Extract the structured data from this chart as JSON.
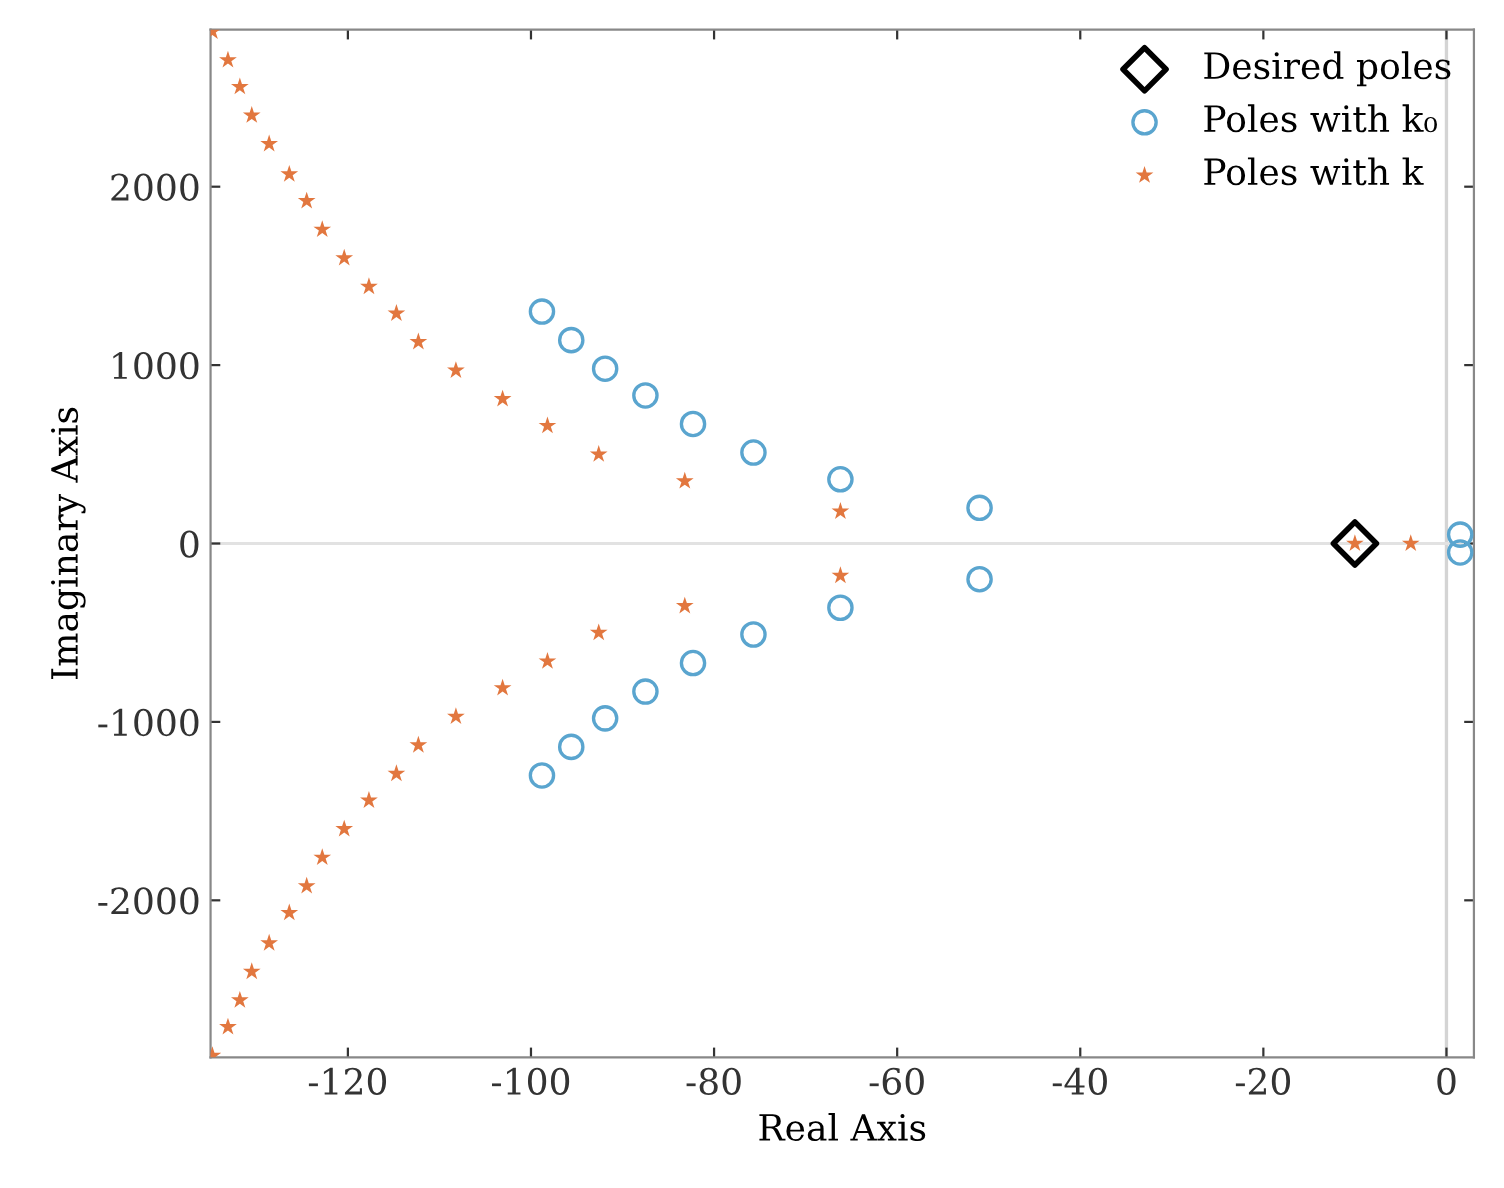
{
  "chart_data": {
    "type": "scatter",
    "xlabel": "Real Axis",
    "ylabel": "Imaginary Axis",
    "xlim": [
      -135,
      3
    ],
    "ylim": [
      -2880,
      2880
    ],
    "xticks": [
      -120,
      -100,
      -80,
      -60,
      -40,
      -20,
      0
    ],
    "yticks": [
      -2000,
      -1000,
      0,
      1000,
      2000
    ],
    "grid": false,
    "legend": "top right",
    "ref_lines": [
      {
        "axis": "x",
        "value": 0,
        "color": "#d4d4d4"
      },
      {
        "axis": "y",
        "value": 0,
        "color": "#e2e2e2"
      }
    ],
    "series": [
      {
        "name": "Desired poles",
        "color": "#000000",
        "marker": "diamond",
        "x": [
          -10
        ],
        "values": [
          0
        ]
      },
      {
        "name": "Poles with k₀",
        "color": "#5aa5cf",
        "marker": "circle",
        "x": [
          -98.8,
          -95.6,
          -91.9,
          -87.5,
          -82.3,
          -75.7,
          -66.2,
          -51.0,
          1.5,
          -98.8,
          -95.6,
          -91.9,
          -87.5,
          -82.3,
          -75.7,
          -66.2,
          -51.0,
          1.5
        ],
        "values": [
          1300,
          1140,
          980,
          830,
          670,
          510,
          360,
          200,
          50,
          -1300,
          -1140,
          -980,
          -830,
          -670,
          -510,
          -360,
          -200,
          -50
        ]
      },
      {
        "name": "Poles with k",
        "color": "#e2773f",
        "marker": "star",
        "x": [
          -134.8,
          -133.1,
          -131.8,
          -130.5,
          -128.6,
          -126.4,
          -124.5,
          -122.8,
          -120.4,
          -117.7,
          -114.7,
          -112.3,
          -108.2,
          -103.1,
          -98.2,
          -92.6,
          -83.2,
          -66.2,
          -134.8,
          -133.1,
          -131.8,
          -130.5,
          -128.6,
          -126.4,
          -124.5,
          -122.8,
          -120.4,
          -117.7,
          -114.7,
          -112.3,
          -108.2,
          -103.1,
          -98.2,
          -92.6,
          -83.2,
          -66.2,
          -10,
          -3.9
        ],
        "values": [
          2870,
          2710,
          2560,
          2400,
          2240,
          2070,
          1920,
          1760,
          1600,
          1440,
          1290,
          1130,
          970,
          810,
          660,
          500,
          350,
          180,
          -2870,
          -2710,
          -2560,
          -2400,
          -2240,
          -2070,
          -1920,
          -1760,
          -1600,
          -1440,
          -1290,
          -1130,
          -970,
          -810,
          -660,
          -500,
          -350,
          -180,
          0,
          0
        ]
      }
    ]
  }
}
